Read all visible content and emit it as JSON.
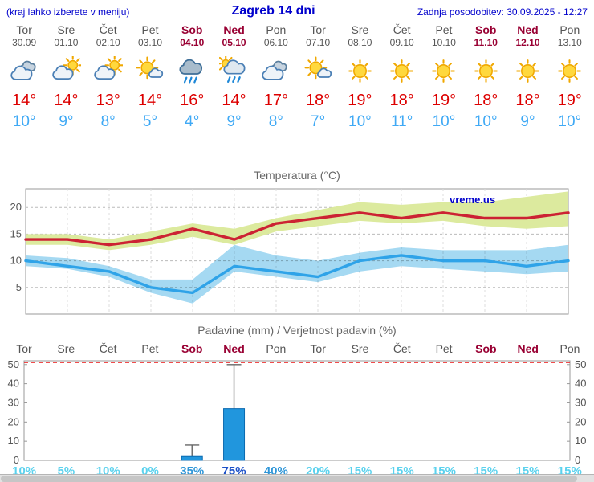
{
  "header": {
    "menu_note": "(kraj lahko izberete v meniju)",
    "title": "Zagreb 14 dni",
    "last_update": "Zadnja posodobitev: 30.09.2025 - 12:27"
  },
  "colors": {
    "link_blue": "#0000cc",
    "weekday_text": "#555555",
    "weekend_text": "#990033",
    "high_temp": "#dd0000",
    "low_temp": "#3fa9f5",
    "chart_title": "#666666",
    "axis_text": "#555555",
    "max_band": "#dcea9e",
    "min_band": "#a5d9f2",
    "max_line": "#cc2233",
    "min_line": "#2fa3e8",
    "bar_fill": "#2196dd",
    "bar_stroke": "#0b6ab0",
    "limit_line": "#ee3333",
    "watermark_blue": "#0000cc"
  },
  "days": [
    {
      "name": "Tor",
      "date": "30.09",
      "weekend": false,
      "icon": "cloudy",
      "high": "14°",
      "low": "10°",
      "prob": "10%",
      "prob_color": "#5bd2ee"
    },
    {
      "name": "Sre",
      "date": "01.10",
      "weekend": false,
      "icon": "partly-cloudy",
      "high": "14°",
      "low": "9°",
      "prob": "5%",
      "prob_color": "#5bd2ee"
    },
    {
      "name": "Čet",
      "date": "02.10",
      "weekend": false,
      "icon": "partly-cloudy",
      "high": "13°",
      "low": "8°",
      "prob": "10%",
      "prob_color": "#5bd2ee"
    },
    {
      "name": "Pet",
      "date": "03.10",
      "weekend": false,
      "icon": "mostly-sunny",
      "high": "14°",
      "low": "5°",
      "prob": "0%",
      "prob_color": "#5bd2ee"
    },
    {
      "name": "Sob",
      "date": "04.10",
      "weekend": true,
      "icon": "rain",
      "high": "16°",
      "low": "4°",
      "prob": "35%",
      "prob_color": "#2f96d8"
    },
    {
      "name": "Ned",
      "date": "05.10",
      "weekend": true,
      "icon": "showers",
      "high": "14°",
      "low": "9°",
      "prob": "75%",
      "prob_color": "#1b50c8"
    },
    {
      "name": "Pon",
      "date": "06.10",
      "weekend": false,
      "icon": "cloudy",
      "high": "17°",
      "low": "8°",
      "prob": "40%",
      "prob_color": "#2f96d8"
    },
    {
      "name": "Tor",
      "date": "07.10",
      "weekend": false,
      "icon": "mostly-sunny",
      "high": "18°",
      "low": "7°",
      "prob": "20%",
      "prob_color": "#5bd2ee"
    },
    {
      "name": "Sre",
      "date": "08.10",
      "weekend": false,
      "icon": "sunny",
      "high": "19°",
      "low": "10°",
      "prob": "15%",
      "prob_color": "#5bd2ee"
    },
    {
      "name": "Čet",
      "date": "09.10",
      "weekend": false,
      "icon": "sunny",
      "high": "18°",
      "low": "11°",
      "prob": "15%",
      "prob_color": "#5bd2ee"
    },
    {
      "name": "Pet",
      "date": "10.10",
      "weekend": false,
      "icon": "sunny",
      "high": "19°",
      "low": "10°",
      "prob": "15%",
      "prob_color": "#5bd2ee"
    },
    {
      "name": "Sob",
      "date": "11.10",
      "weekend": true,
      "icon": "sunny",
      "high": "18°",
      "low": "10°",
      "prob": "15%",
      "prob_color": "#5bd2ee"
    },
    {
      "name": "Ned",
      "date": "12.10",
      "weekend": true,
      "icon": "sunny",
      "high": "18°",
      "low": "9°",
      "prob": "15%",
      "prob_color": "#5bd2ee"
    },
    {
      "name": "Pon",
      "date": "13.10",
      "weekend": false,
      "icon": "sunny",
      "high": "19°",
      "low": "10°",
      "prob": "15%",
      "prob_color": "#5bd2ee"
    }
  ],
  "chart_data": [
    {
      "type": "line",
      "title": "Temperatura (°C)",
      "watermark": "vreme.us",
      "x_labels": [
        "Tor 30.09",
        "Sre 01.10",
        "Čet 02.10",
        "Pet 03.10",
        "Sob 04.10",
        "Ned 05.10",
        "Pon 06.10",
        "Tor 07.10",
        "Sre 08.10",
        "Čet 09.10",
        "Pet 10.10",
        "Sob 11.10",
        "Ned 12.10",
        "Pon 13.10"
      ],
      "ylim": [
        0,
        23.5
      ],
      "yticks": [
        5,
        10,
        15,
        20
      ],
      "grid": true,
      "legend_position": "none",
      "series": [
        {
          "name": "max_temp",
          "color": "#cc2233",
          "values": [
            14,
            14,
            13,
            14,
            16,
            14,
            17,
            18,
            19,
            18,
            19,
            18,
            18,
            19
          ]
        },
        {
          "name": "min_temp",
          "color": "#2fa3e8",
          "values": [
            10,
            9,
            8,
            5,
            4,
            9,
            8,
            7,
            10,
            11,
            10,
            10,
            9,
            10
          ]
        }
      ],
      "bands": [
        {
          "name": "max_temp_range",
          "color": "#dcea9e",
          "upper": [
            15,
            15,
            14,
            15.5,
            17,
            16,
            18,
            19.5,
            21,
            20.5,
            21,
            21,
            22,
            23
          ],
          "lower": [
            13,
            13,
            12,
            13,
            14.5,
            13,
            15.5,
            16.5,
            17.5,
            17,
            17.5,
            16.5,
            16,
            16.5
          ]
        },
        {
          "name": "min_temp_range",
          "color": "#a5d9f2",
          "upper": [
            11,
            10.5,
            9,
            6.5,
            6.5,
            13,
            11,
            10,
            11.5,
            12.5,
            12,
            12,
            12,
            13
          ],
          "lower": [
            9,
            8.5,
            7,
            4,
            2,
            8,
            7,
            6,
            8,
            9,
            8.5,
            8,
            7.5,
            8
          ]
        }
      ]
    },
    {
      "type": "bar",
      "title": "Padavine (mm) / Verjetnost padavin (%)",
      "categories": [
        "Tor",
        "Sre",
        "Čet",
        "Pet",
        "Sob",
        "Ned",
        "Pon",
        "Tor",
        "Sre",
        "Čet",
        "Pet",
        "Sob",
        "Ned",
        "Pon"
      ],
      "weekend": [
        false,
        false,
        false,
        false,
        true,
        true,
        false,
        false,
        false,
        false,
        false,
        true,
        true,
        false
      ],
      "values_mm": [
        0,
        0,
        0,
        0,
        2,
        27,
        0,
        0,
        0,
        0,
        0,
        0,
        0,
        0
      ],
      "whisker_max_mm": [
        0,
        0,
        0,
        0,
        8,
        50,
        0,
        0,
        0,
        0,
        0,
        0,
        0,
        0
      ],
      "probabilities_pct": [
        10,
        5,
        10,
        0,
        35,
        75,
        40,
        20,
        15,
        15,
        15,
        15,
        15,
        15
      ],
      "ylim": [
        0,
        52
      ],
      "yticks": [
        0,
        10,
        20,
        30,
        40,
        50
      ],
      "limit_line_value": 51,
      "grid": false,
      "legend_position": "none"
    }
  ]
}
